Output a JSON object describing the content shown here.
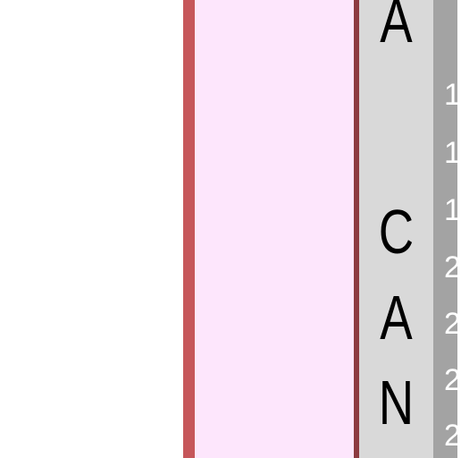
{
  "colors": {
    "pink_fill": "#fde6fc",
    "pink_left_border": "#c6565a",
    "pink_right_border": "#8c3a40",
    "letter_column_bg": "#d9d9d9",
    "line_number_bg": "#a3a3a3"
  },
  "letters": [
    "A",
    "C",
    "A",
    "N"
  ],
  "line_numbers": [
    "1",
    "1",
    "1",
    "2",
    "2",
    "2",
    "2"
  ]
}
